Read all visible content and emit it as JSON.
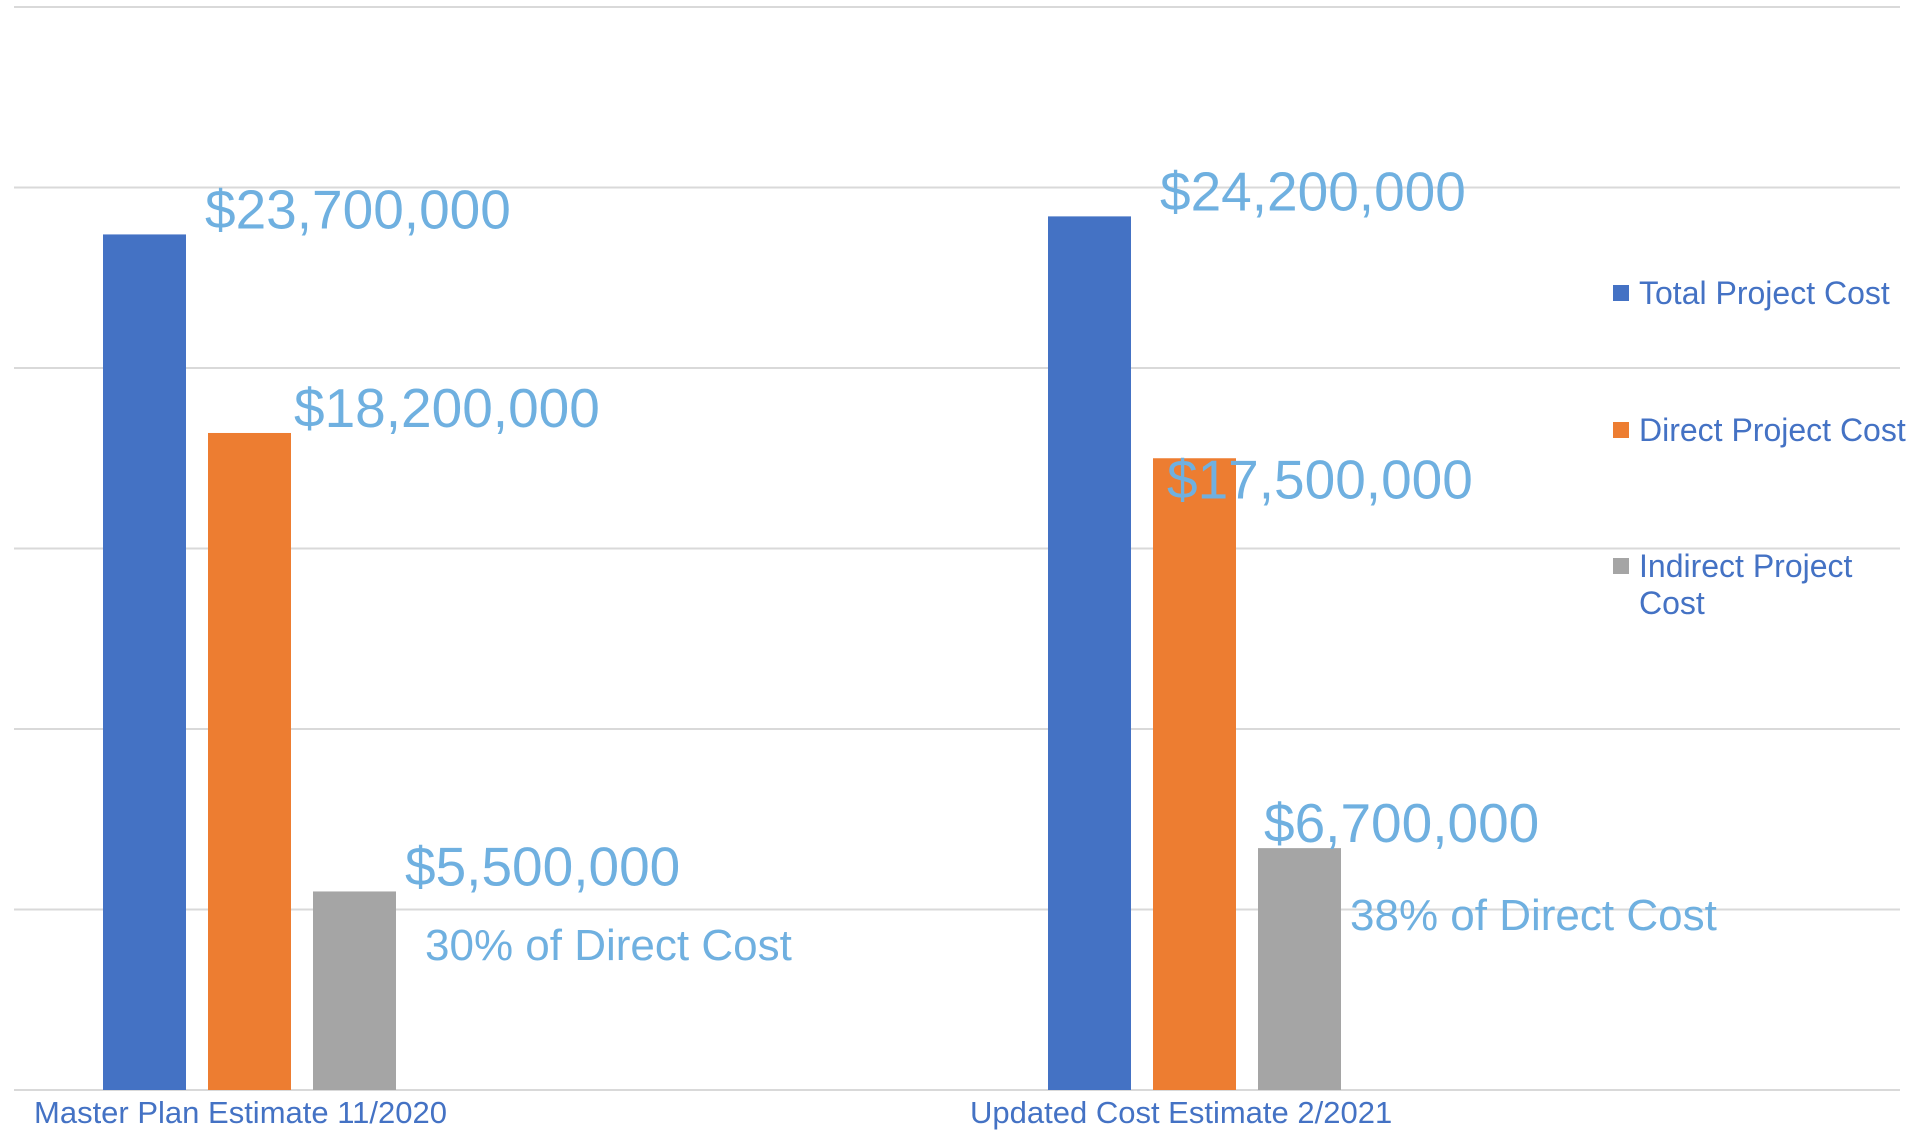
{
  "colors": {
    "total": "#4472c4",
    "direct": "#ed7d31",
    "indirect": "#a5a5a5",
    "value_label": "#6fb0e0",
    "text_blue": "#4472c4"
  },
  "chart_data": {
    "type": "bar",
    "categories": [
      "Master Plan Estimate 11/2020",
      "Updated Cost Estimate 2/2021"
    ],
    "series": [
      {
        "name": "Total Project Cost",
        "values": [
          23700000,
          24200000
        ],
        "labels": [
          "$23,700,000",
          "$24,200,000"
        ]
      },
      {
        "name": "Direct Project Cost",
        "values": [
          18200000,
          17500000
        ],
        "labels": [
          "$18,200,000",
          "$17,500,000"
        ]
      },
      {
        "name": "Indirect Project Cost",
        "values": [
          5500000,
          6700000
        ],
        "labels": [
          "$5,500,000",
          "$6,700,000"
        ]
      }
    ],
    "annotations": [
      "30% of Direct Cost",
      "38% of Direct Cost"
    ],
    "ylim": [
      0,
      30000000
    ],
    "gridline_step": 5000000,
    "grid": true,
    "legend_position": "right",
    "title": "",
    "xlabel": "",
    "ylabel": ""
  }
}
